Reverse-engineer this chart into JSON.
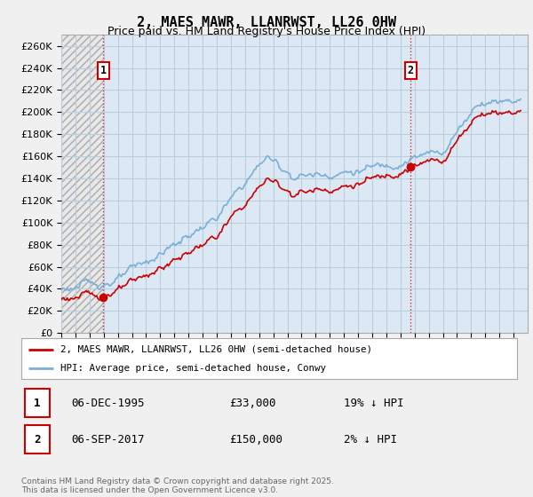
{
  "title": "2, MAES MAWR, LLANRWST, LL26 0HW",
  "subtitle": "Price paid vs. HM Land Registry's House Price Index (HPI)",
  "ylim": [
    0,
    270000
  ],
  "yticks": [
    0,
    20000,
    40000,
    60000,
    80000,
    100000,
    120000,
    140000,
    160000,
    180000,
    200000,
    220000,
    240000,
    260000
  ],
  "ytick_labels": [
    "£0",
    "£20K",
    "£40K",
    "£60K",
    "£80K",
    "£100K",
    "£120K",
    "£140K",
    "£160K",
    "£180K",
    "£200K",
    "£220K",
    "£240K",
    "£260K"
  ],
  "hpi_color": "#7bafd4",
  "price_color": "#cc0000",
  "marker_color": "#cc0000",
  "sale1_year": 1995,
  "sale1_month": 12,
  "sale1_price": 33000,
  "sale1_label": "1",
  "sale2_year": 2017,
  "sale2_month": 9,
  "sale2_price": 150000,
  "sale2_label": "2",
  "legend_line1": "2, MAES MAWR, LLANRWST, LL26 0HW (semi-detached house)",
  "legend_line2": "HPI: Average price, semi-detached house, Conwy",
  "table_row1_num": "1",
  "table_row1_date": "06-DEC-1995",
  "table_row1_price": "£33,000",
  "table_row1_hpi": "19% ↓ HPI",
  "table_row2_num": "2",
  "table_row2_date": "06-SEP-2017",
  "table_row2_price": "£150,000",
  "table_row2_hpi": "2% ↓ HPI",
  "footer": "Contains HM Land Registry data © Crown copyright and database right 2025.\nThis data is licensed under the Open Government Licence v3.0.",
  "bg_color": "#f0f0f0",
  "plot_bg_color": "#dce9f5",
  "hatch_bg_color": "#e8e8e8",
  "grid_color": "#b8cfe0",
  "xmin": 1993.0,
  "xmax": 2026.0
}
